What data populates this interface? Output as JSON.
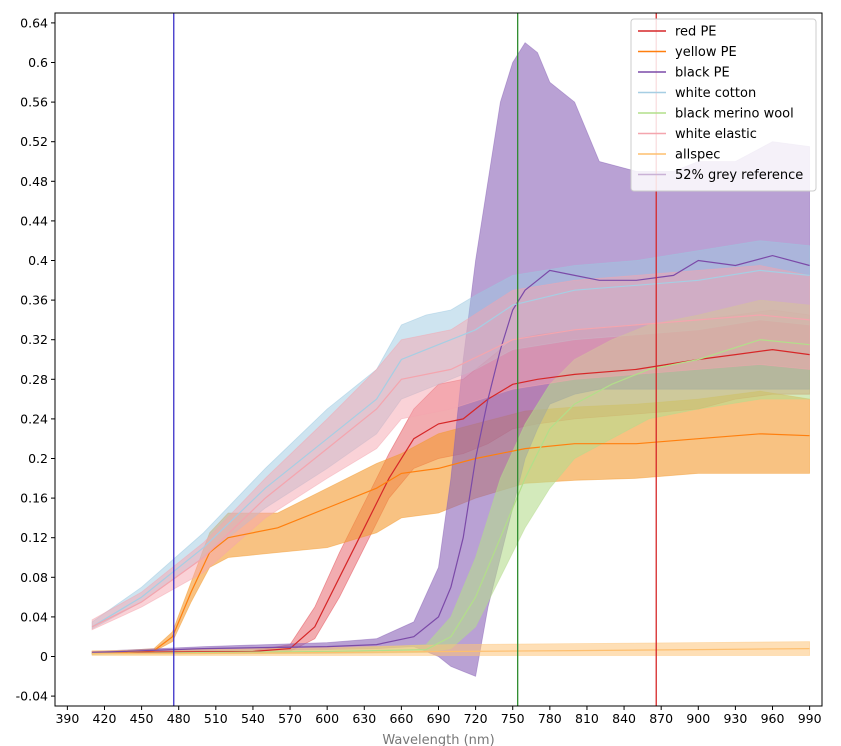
{
  "chart_data": {
    "type": "line",
    "title": "",
    "xlabel": "Wavelength (nm)",
    "ylabel": "",
    "xlim": [
      380,
      1000
    ],
    "ylim": [
      -0.05,
      0.65
    ],
    "x_ticks": [
      390,
      420,
      450,
      480,
      510,
      540,
      570,
      600,
      630,
      660,
      690,
      720,
      750,
      780,
      810,
      840,
      870,
      900,
      930,
      960,
      990
    ],
    "y_ticks": [
      -0.04,
      0,
      0.04,
      0.08,
      0.12,
      0.16,
      0.2,
      0.24,
      0.28,
      0.32,
      0.36,
      0.4,
      0.44,
      0.48,
      0.52,
      0.56,
      0.6,
      0.64
    ],
    "y_tick_labels": [
      "-0.04",
      "0",
      "0.04",
      "0.08",
      "0.12",
      "0.16",
      "0.2",
      "0.24",
      "0.28",
      "0.32",
      "0.36",
      "0.4",
      "0.44",
      "0.48",
      "0.52",
      "0.56",
      "0.6",
      "0.64"
    ],
    "grid": false,
    "legend_position": "top-right",
    "vertical_lines": [
      {
        "x": 476,
        "color": "#3b2fc9"
      },
      {
        "x": 754,
        "color": "#2e8b2e"
      },
      {
        "x": 866,
        "color": "#d62728"
      }
    ],
    "series": [
      {
        "name": "red PE",
        "color": "#d62728",
        "band_color": "#e3474f",
        "band_opacity": 0.45,
        "x": [
          410,
          540,
          570,
          590,
          610,
          630,
          650,
          670,
          690,
          710,
          730,
          750,
          770,
          800,
          850,
          900,
          930,
          960,
          990
        ],
        "y": [
          0.004,
          0.005,
          0.008,
          0.03,
          0.08,
          0.13,
          0.18,
          0.22,
          0.235,
          0.24,
          0.26,
          0.275,
          0.28,
          0.285,
          0.29,
          0.3,
          0.305,
          0.31,
          0.305
        ],
        "lower": [
          0.003,
          0.004,
          0.005,
          0.018,
          0.06,
          0.11,
          0.16,
          0.19,
          0.2,
          0.205,
          0.215,
          0.23,
          0.235,
          0.24,
          0.245,
          0.25,
          0.26,
          0.265,
          0.265
        ],
        "upper": [
          0.005,
          0.006,
          0.012,
          0.05,
          0.105,
          0.155,
          0.205,
          0.25,
          0.275,
          0.28,
          0.3,
          0.32,
          0.325,
          0.33,
          0.335,
          0.34,
          0.345,
          0.35,
          0.345
        ]
      },
      {
        "name": "yellow PE",
        "color": "#ff7f0e",
        "band_color": "#f39a2e",
        "band_opacity": 0.6,
        "x": [
          410,
          460,
          475,
          490,
          505,
          520,
          560,
          600,
          640,
          660,
          690,
          720,
          760,
          800,
          850,
          900,
          950,
          990
        ],
        "y": [
          0.003,
          0.006,
          0.02,
          0.065,
          0.105,
          0.12,
          0.13,
          0.15,
          0.17,
          0.185,
          0.19,
          0.2,
          0.21,
          0.215,
          0.215,
          0.22,
          0.225,
          0.223
        ],
        "lower": [
          0.002,
          0.005,
          0.015,
          0.055,
          0.09,
          0.1,
          0.105,
          0.11,
          0.125,
          0.14,
          0.145,
          0.16,
          0.175,
          0.178,
          0.18,
          0.185,
          0.185,
          0.185
        ],
        "upper": [
          0.004,
          0.008,
          0.025,
          0.075,
          0.125,
          0.145,
          0.145,
          0.17,
          0.195,
          0.205,
          0.225,
          0.235,
          0.248,
          0.252,
          0.255,
          0.26,
          0.268,
          0.26
        ]
      },
      {
        "name": "black PE",
        "color": "#7b4aa8",
        "band_color": "#8a63b8",
        "band_opacity": 0.6,
        "x": [
          410,
          500,
          600,
          640,
          670,
          690,
          700,
          710,
          720,
          730,
          740,
          750,
          760,
          770,
          780,
          800,
          820,
          850,
          880,
          900,
          930,
          960,
          990
        ],
        "y": [
          0.004,
          0.008,
          0.01,
          0.012,
          0.02,
          0.04,
          0.07,
          0.12,
          0.2,
          0.26,
          0.31,
          0.35,
          0.37,
          0.38,
          0.39,
          0.385,
          0.38,
          0.38,
          0.385,
          0.4,
          0.395,
          0.405,
          0.395
        ],
        "lower": [
          0.003,
          0.005,
          0.007,
          0.008,
          0.01,
          0.0,
          -0.01,
          -0.015,
          -0.02,
          0.05,
          0.1,
          0.15,
          0.2,
          0.23,
          0.255,
          0.265,
          0.27,
          0.27,
          0.27,
          0.27,
          0.27,
          0.27,
          0.27
        ],
        "upper": [
          0.005,
          0.01,
          0.014,
          0.018,
          0.035,
          0.09,
          0.18,
          0.3,
          0.4,
          0.48,
          0.56,
          0.6,
          0.62,
          0.61,
          0.58,
          0.56,
          0.5,
          0.49,
          0.49,
          0.5,
          0.5,
          0.52,
          0.515
        ]
      },
      {
        "name": "white cotton",
        "color": "#a6cee3",
        "band_color": "#9ecae1",
        "band_opacity": 0.5,
        "x": [
          410,
          450,
          500,
          550,
          600,
          640,
          660,
          680,
          700,
          720,
          750,
          800,
          850,
          900,
          950,
          990
        ],
        "y": [
          0.03,
          0.06,
          0.11,
          0.17,
          0.22,
          0.26,
          0.3,
          0.31,
          0.32,
          0.33,
          0.355,
          0.37,
          0.375,
          0.38,
          0.39,
          0.385
        ],
        "lower": [
          0.028,
          0.055,
          0.1,
          0.15,
          0.19,
          0.225,
          0.26,
          0.27,
          0.28,
          0.29,
          0.31,
          0.32,
          0.325,
          0.33,
          0.34,
          0.335
        ],
        "upper": [
          0.035,
          0.07,
          0.125,
          0.19,
          0.25,
          0.29,
          0.335,
          0.345,
          0.35,
          0.365,
          0.385,
          0.395,
          0.4,
          0.41,
          0.42,
          0.415
        ]
      },
      {
        "name": "black merino wool",
        "color": "#b2df8a",
        "band_color": "#b5dc8d",
        "band_opacity": 0.6,
        "x": [
          410,
          600,
          680,
          700,
          720,
          740,
          760,
          780,
          800,
          830,
          860,
          900,
          950,
          990
        ],
        "y": [
          0.003,
          0.005,
          0.007,
          0.02,
          0.06,
          0.12,
          0.18,
          0.23,
          0.255,
          0.275,
          0.29,
          0.3,
          0.32,
          0.315
        ],
        "lower": [
          0.002,
          0.003,
          0.004,
          0.008,
          0.03,
          0.08,
          0.13,
          0.17,
          0.2,
          0.22,
          0.24,
          0.25,
          0.26,
          0.26
        ],
        "upper": [
          0.004,
          0.007,
          0.012,
          0.04,
          0.1,
          0.18,
          0.235,
          0.275,
          0.3,
          0.32,
          0.335,
          0.345,
          0.36,
          0.355
        ]
      },
      {
        "name": "white elastic",
        "color": "#f4a5ae",
        "band_color": "#f6a6b0",
        "band_opacity": 0.5,
        "x": [
          410,
          450,
          500,
          550,
          600,
          640,
          660,
          700,
          750,
          800,
          850,
          900,
          950,
          990
        ],
        "y": [
          0.03,
          0.055,
          0.1,
          0.16,
          0.21,
          0.25,
          0.28,
          0.29,
          0.32,
          0.33,
          0.335,
          0.34,
          0.345,
          0.34
        ],
        "lower": [
          0.027,
          0.05,
          0.085,
          0.14,
          0.18,
          0.21,
          0.24,
          0.25,
          0.27,
          0.28,
          0.285,
          0.29,
          0.295,
          0.29
        ],
        "upper": [
          0.037,
          0.065,
          0.115,
          0.18,
          0.24,
          0.29,
          0.32,
          0.33,
          0.37,
          0.38,
          0.385,
          0.39,
          0.395,
          0.385
        ]
      },
      {
        "name": "allspec",
        "color": "#fdbf6f",
        "band_color": "#fdc57a",
        "band_opacity": 0.55,
        "x": [
          410,
          500,
          600,
          700,
          800,
          900,
          990
        ],
        "y": [
          0.003,
          0.003,
          0.004,
          0.005,
          0.006,
          0.007,
          0.008
        ],
        "lower": [
          0.001,
          0.001,
          0.001,
          0.001,
          0.001,
          0.001,
          0.001
        ],
        "upper": [
          0.006,
          0.007,
          0.009,
          0.012,
          0.013,
          0.014,
          0.015
        ]
      },
      {
        "name": "52% grey reference",
        "color": "#cab2d6",
        "x": [],
        "y": []
      }
    ]
  }
}
